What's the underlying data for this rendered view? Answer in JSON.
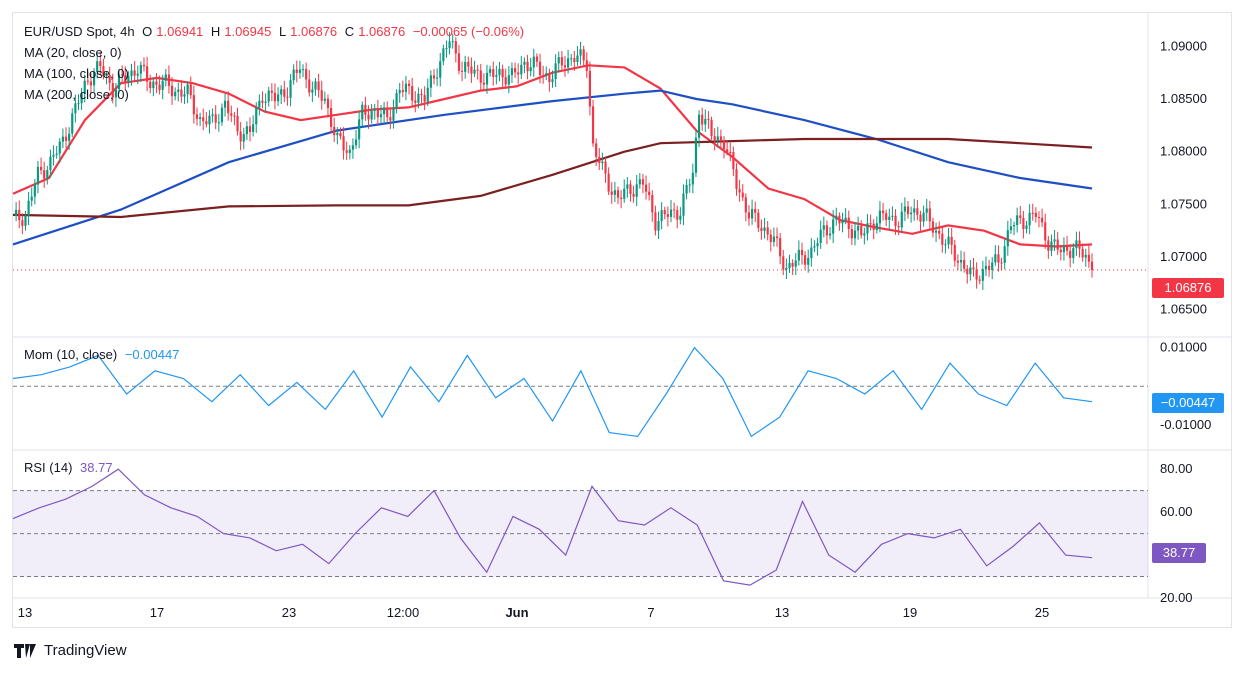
{
  "header": {
    "symbol": "EUR/USD Spot, 4h",
    "o_label": "O",
    "o_value": "1.06941",
    "h_label": "H",
    "h_value": "1.06945",
    "l_label": "L",
    "l_value": "1.06876",
    "c_label": "C",
    "c_value": "1.06876",
    "change": "−0.00065 (−0.06%)"
  },
  "indicators": {
    "ma20": "MA (20, close, 0)",
    "ma100": "MA (100, close, 0)",
    "ma200": "MA (200, close, 0)",
    "mom_label": "Mom (10, close)",
    "mom_value": "−0.00447",
    "rsi_label": "RSI (14)",
    "rsi_value": "38.77"
  },
  "badges": {
    "price": "1.06876",
    "mom": "−0.00447",
    "rsi": "38.77"
  },
  "brand": "TradingView",
  "colors": {
    "up": "#089981",
    "down": "#f23645",
    "ma20": "#f23645",
    "ma100": "#1e4fc4",
    "ma200": "#7b1f1f",
    "mom": "#2196f3",
    "rsi": "#7e57c2"
  },
  "chart_data": [
    {
      "type": "candlestick",
      "title": "EUR/USD Spot, 4h",
      "ylim": [
        1.0625,
        1.0925
      ],
      "yticks": [
        "1.06500",
        "1.07000",
        "1.07500",
        "1.08000",
        "1.08500",
        "1.09000"
      ],
      "xticks": [
        "13",
        "17",
        "23",
        "12:00",
        "Jun",
        "7",
        "13",
        "19",
        "25"
      ],
      "last_price": 1.06876,
      "close_path": [
        [
          0,
          1.0735
        ],
        [
          4,
          1.074
        ],
        [
          8,
          1.0778
        ],
        [
          12,
          1.079
        ],
        [
          16,
          1.081
        ],
        [
          20,
          1.084
        ],
        [
          24,
          1.087
        ],
        [
          28,
          1.088
        ],
        [
          32,
          1.086
        ],
        [
          36,
          1.087
        ],
        [
          40,
          1.088
        ],
        [
          44,
          1.0865
        ],
        [
          48,
          1.0865
        ],
        [
          52,
          1.0858
        ],
        [
          56,
          1.0855
        ],
        [
          60,
          1.083
        ],
        [
          64,
          1.0828
        ],
        [
          68,
          1.0845
        ],
        [
          72,
          1.082
        ],
        [
          76,
          1.0818
        ],
        [
          80,
          1.0855
        ],
        [
          84,
          1.085
        ],
        [
          88,
          1.086
        ],
        [
          92,
          1.088
        ],
        [
          96,
          1.086
        ],
        [
          100,
          1.085
        ],
        [
          104,
          1.081
        ],
        [
          108,
          1.08
        ],
        [
          112,
          1.0835
        ],
        [
          116,
          1.084
        ],
        [
          120,
          1.083
        ],
        [
          124,
          1.086
        ],
        [
          128,
          1.0855
        ],
        [
          132,
          1.085
        ],
        [
          136,
          1.088
        ],
        [
          140,
          1.0905
        ],
        [
          144,
          1.088
        ],
        [
          148,
          1.0875
        ],
        [
          152,
          1.087
        ],
        [
          156,
          1.0875
        ],
        [
          160,
          1.087
        ],
        [
          164,
          1.0885
        ],
        [
          168,
          1.088
        ],
        [
          172,
          1.087
        ],
        [
          176,
          1.0885
        ],
        [
          180,
          1.089
        ],
        [
          184,
          1.0885
        ],
        [
          186,
          1.0805
        ],
        [
          190,
          1.0775
        ],
        [
          194,
          1.0755
        ],
        [
          198,
          1.0765
        ],
        [
          202,
          1.077
        ],
        [
          206,
          1.0735
        ],
        [
          210,
          1.074
        ],
        [
          214,
          1.0745
        ],
        [
          218,
          1.078
        ],
        [
          220,
          1.084
        ],
        [
          224,
          1.0815
        ],
        [
          228,
          1.081
        ],
        [
          232,
          1.077
        ],
        [
          236,
          1.074
        ],
        [
          240,
          1.073
        ],
        [
          244,
          1.0715
        ],
        [
          248,
          1.069
        ],
        [
          252,
          1.0698
        ],
        [
          256,
          1.0705
        ],
        [
          260,
          1.0725
        ],
        [
          264,
          1.0735
        ],
        [
          268,
          1.073
        ],
        [
          272,
          1.072
        ],
        [
          276,
          1.0735
        ],
        [
          280,
          1.0738
        ],
        [
          284,
          1.0735
        ],
        [
          288,
          1.0745
        ],
        [
          292,
          1.074
        ],
        [
          296,
          1.0725
        ],
        [
          300,
          1.071
        ],
        [
          304,
          1.0695
        ],
        [
          308,
          1.068
        ],
        [
          312,
          1.069
        ],
        [
          316,
          1.0695
        ],
        [
          320,
          1.073
        ],
        [
          324,
          1.0735
        ],
        [
          328,
          1.074
        ],
        [
          332,
          1.0715
        ],
        [
          336,
          1.0705
        ],
        [
          340,
          1.071
        ],
        [
          344,
          1.07
        ],
        [
          346,
          1.0688
        ]
      ],
      "series": [
        {
          "name": "MA (20, close, 0)",
          "values": [
            [
              0,
              1.076
            ],
            [
              20,
              1.0775
            ],
            [
              40,
              1.083
            ],
            [
              60,
              1.0865
            ],
            [
              80,
              1.087
            ],
            [
              100,
              1.0865
            ],
            [
              120,
              1.0855
            ],
            [
              140,
              1.0838
            ],
            [
              160,
              1.083
            ],
            [
              180,
              1.0835
            ],
            [
              200,
              1.084
            ],
            [
              220,
              1.0842
            ],
            [
              240,
              1.085
            ],
            [
              260,
              1.0858
            ],
            [
              280,
              1.0862
            ],
            [
              300,
              1.0875
            ],
            [
              320,
              1.0882
            ],
            [
              340,
              1.088
            ],
            [
              360,
              1.086
            ],
            [
              380,
              1.082
            ],
            [
              400,
              1.0795
            ],
            [
              420,
              1.0765
            ],
            [
              440,
              1.0755
            ],
            [
              460,
              1.0735
            ],
            [
              480,
              1.0728
            ],
            [
              500,
              1.0722
            ],
            [
              520,
              1.073
            ],
            [
              540,
              1.0725
            ],
            [
              560,
              1.0712
            ],
            [
              580,
              1.071
            ],
            [
              600,
              1.0712
            ]
          ]
        },
        {
          "name": "MA (100, close, 0)",
          "values": [
            [
              0,
              1.0712
            ],
            [
              60,
              1.0745
            ],
            [
              120,
              1.079
            ],
            [
              180,
              1.082
            ],
            [
              240,
              1.0835
            ],
            [
              300,
              1.0848
            ],
            [
              340,
              1.0855
            ],
            [
              360,
              1.0858
            ],
            [
              380,
              1.085
            ],
            [
              400,
              1.0845
            ],
            [
              440,
              1.083
            ],
            [
              480,
              1.0812
            ],
            [
              520,
              1.079
            ],
            [
              560,
              1.0775
            ],
            [
              600,
              1.0765
            ]
          ]
        },
        {
          "name": "MA (200, close, 0)",
          "values": [
            [
              0,
              1.074
            ],
            [
              60,
              1.0738
            ],
            [
              120,
              1.0748
            ],
            [
              180,
              1.0749
            ],
            [
              220,
              1.0749
            ],
            [
              260,
              1.0758
            ],
            [
              300,
              1.0778
            ],
            [
              340,
              1.08
            ],
            [
              360,
              1.0808
            ],
            [
              400,
              1.081
            ],
            [
              440,
              1.0812
            ],
            [
              480,
              1.0812
            ],
            [
              520,
              1.0812
            ],
            [
              560,
              1.0808
            ],
            [
              600,
              1.0804
            ]
          ]
        }
      ]
    },
    {
      "type": "line",
      "title": "Mom (10, close)",
      "ylim": [
        -0.016,
        0.0125
      ],
      "yticks": [
        "0.01000",
        "-0.01000"
      ],
      "last_value": -0.00447,
      "series": [
        {
          "name": "Mom (10, close)",
          "values": [
            [
              0,
              0.002
            ],
            [
              10,
              0.003
            ],
            [
              20,
              0.005
            ],
            [
              30,
              0.008
            ],
            [
              40,
              -0.002
            ],
            [
              50,
              0.004
            ],
            [
              60,
              0.002
            ],
            [
              70,
              -0.004
            ],
            [
              80,
              0.003
            ],
            [
              90,
              -0.005
            ],
            [
              100,
              0.001
            ],
            [
              110,
              -0.006
            ],
            [
              120,
              0.004
            ],
            [
              130,
              -0.008
            ],
            [
              140,
              0.005
            ],
            [
              150,
              -0.004
            ],
            [
              160,
              0.008
            ],
            [
              170,
              -0.003
            ],
            [
              180,
              0.002
            ],
            [
              190,
              -0.009
            ],
            [
              200,
              0.004
            ],
            [
              210,
              -0.012
            ],
            [
              220,
              -0.013
            ],
            [
              230,
              -0.002
            ],
            [
              240,
              0.01
            ],
            [
              250,
              0.002
            ],
            [
              260,
              -0.013
            ],
            [
              270,
              -0.008
            ],
            [
              280,
              0.004
            ],
            [
              290,
              0.002
            ],
            [
              300,
              -0.002
            ],
            [
              310,
              0.004
            ],
            [
              320,
              -0.006
            ],
            [
              330,
              0.006
            ],
            [
              340,
              -0.002
            ],
            [
              350,
              -0.005
            ],
            [
              360,
              0.006
            ],
            [
              370,
              -0.003
            ],
            [
              380,
              -0.004
            ]
          ]
        }
      ]
    },
    {
      "type": "line",
      "title": "RSI (14)",
      "ylim": [
        20,
        88
      ],
      "yticks": [
        "80.00",
        "60.00",
        "20.00"
      ],
      "bands": [
        30,
        50,
        70
      ],
      "last_value": 38.77,
      "series": [
        {
          "name": "RSI (14)",
          "values": [
            [
              0,
              57
            ],
            [
              10,
              62
            ],
            [
              20,
              66
            ],
            [
              30,
              72
            ],
            [
              40,
              80
            ],
            [
              50,
              68
            ],
            [
              60,
              62
            ],
            [
              70,
              58
            ],
            [
              80,
              50
            ],
            [
              90,
              48
            ],
            [
              100,
              42
            ],
            [
              110,
              45
            ],
            [
              120,
              36
            ],
            [
              130,
              50
            ],
            [
              140,
              62
            ],
            [
              150,
              58
            ],
            [
              160,
              70
            ],
            [
              170,
              48
            ],
            [
              180,
              32
            ],
            [
              190,
              58
            ],
            [
              200,
              52
            ],
            [
              210,
              40
            ],
            [
              220,
              72
            ],
            [
              230,
              56
            ],
            [
              240,
              54
            ],
            [
              250,
              62
            ],
            [
              260,
              54
            ],
            [
              270,
              28
            ],
            [
              280,
              26
            ],
            [
              290,
              33
            ],
            [
              300,
              65
            ],
            [
              310,
              40
            ],
            [
              320,
              32
            ],
            [
              330,
              45
            ],
            [
              340,
              50
            ],
            [
              350,
              48
            ],
            [
              360,
              52
            ],
            [
              370,
              35
            ],
            [
              380,
              44
            ],
            [
              390,
              55
            ],
            [
              400,
              40
            ],
            [
              410,
              38.77
            ]
          ]
        }
      ]
    }
  ]
}
